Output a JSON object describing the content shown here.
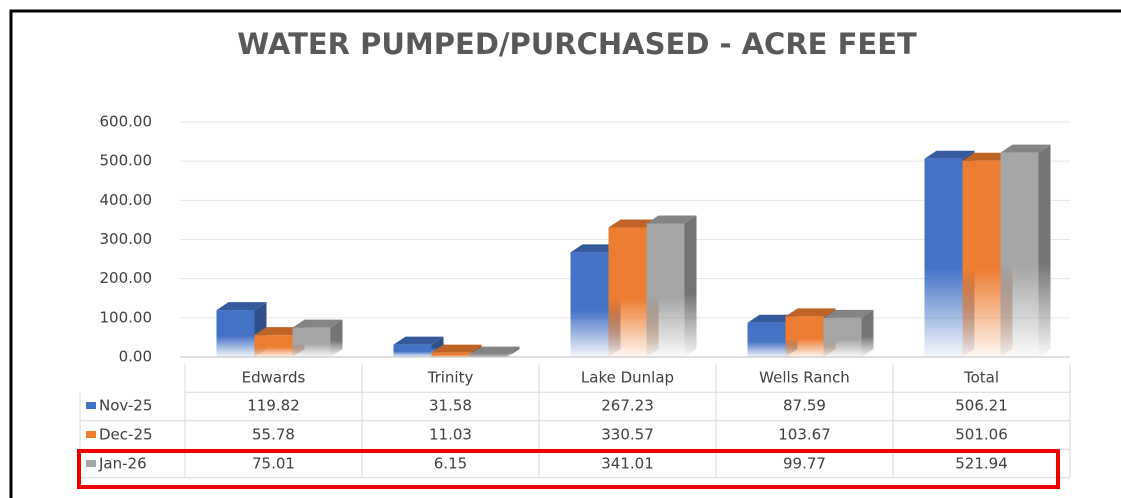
{
  "chart_data": {
    "type": "bar",
    "title": "WATER PUMPED/PURCHASED - ACRE FEET",
    "categories": [
      "Edwards",
      "Trinity",
      "Lake Dunlap",
      "Wells Ranch",
      "Total"
    ],
    "series": [
      {
        "name": "Nov-25",
        "color": "#4472c4",
        "values": [
          119.82,
          31.58,
          267.23,
          87.59,
          506.21
        ]
      },
      {
        "name": "Dec-25",
        "color": "#ed7d31",
        "values": [
          55.78,
          11.03,
          330.57,
          103.67,
          501.06
        ]
      },
      {
        "name": "Jan-26",
        "color": "#a5a5a5",
        "values": [
          75.01,
          6.15,
          341.01,
          99.77,
          521.94
        ]
      }
    ],
    "ylim": [
      0,
      600
    ],
    "yticks": [
      {
        "value": 0,
        "label": "0.00"
      },
      {
        "value": 100,
        "label": "100.00"
      },
      {
        "value": 200,
        "label": "200.00"
      },
      {
        "value": 300,
        "label": "300.00"
      },
      {
        "value": 400,
        "label": "400.00"
      },
      {
        "value": 500,
        "label": "500.00"
      },
      {
        "value": 600,
        "label": "600.00"
      }
    ],
    "grid": true
  }
}
